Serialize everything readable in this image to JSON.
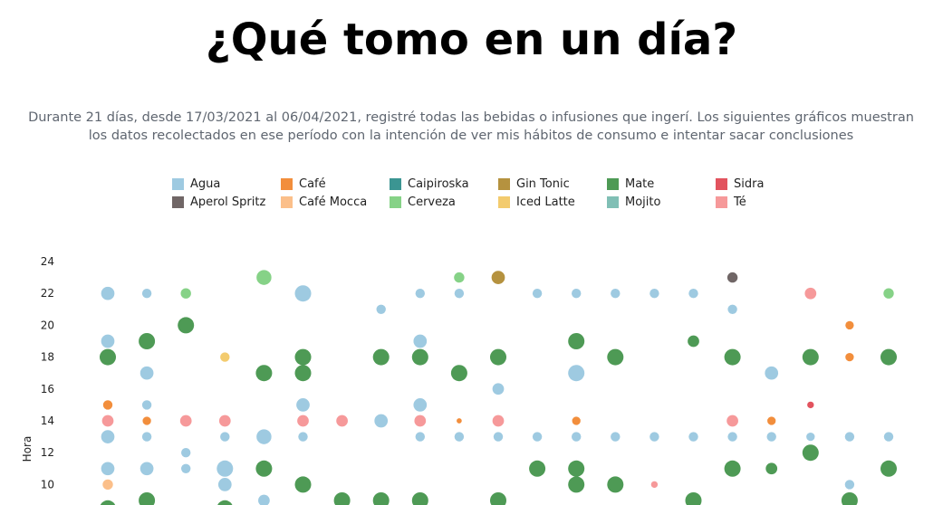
{
  "header": {
    "title": "¿Qué tomo en un día?",
    "subtitle": "Durante 21 días, desde 17/03/2021 al 06/04/2021, registré todas las bebidas o infusiones que ingerí. Los siguientes gráficos muestran los datos recolectados en ese período con la intención de ver mis hábitos de consumo e intentar sacar conclusiones"
  },
  "legend": [
    {
      "name": "Agua",
      "color": "#9ecae1"
    },
    {
      "name": "Café",
      "color": "#f28e3c"
    },
    {
      "name": "Caipiroska",
      "color": "#3b9592"
    },
    {
      "name": "Gin Tonic",
      "color": "#b5923f"
    },
    {
      "name": "Mate",
      "color": "#4e9a55"
    },
    {
      "name": "Sidra",
      "color": "#e2535e"
    },
    {
      "name": "Aperol Spritz",
      "color": "#706666"
    },
    {
      "name": "Café Mocca",
      "color": "#fbbf8a"
    },
    {
      "name": "Cerveza",
      "color": "#86d287"
    },
    {
      "name": "Iced Latte",
      "color": "#f3cb6e"
    },
    {
      "name": "Mojito",
      "color": "#80bfb5"
    },
    {
      "name": "Té",
      "color": "#f6999a"
    }
  ],
  "chart_data": {
    "type": "scatter",
    "title": "",
    "xlabel": "",
    "ylabel": "Hora",
    "ylim": [
      8.5,
      25
    ],
    "yticks": [
      "24",
      "22",
      "20",
      "18",
      "16",
      "14",
      "12",
      "10"
    ],
    "days": 21,
    "points": [
      {
        "day": 1,
        "hora": 22,
        "bebida": "Agua",
        "size": 2
      },
      {
        "day": 1,
        "hora": 19,
        "bebida": "Agua",
        "size": 2
      },
      {
        "day": 1,
        "hora": 18,
        "bebida": "Mate",
        "size": 3
      },
      {
        "day": 1,
        "hora": 15,
        "bebida": "Café",
        "size": 1
      },
      {
        "day": 1,
        "hora": 14,
        "bebida": "Té",
        "size": 1.5
      },
      {
        "day": 1,
        "hora": 13,
        "bebida": "Agua",
        "size": 2
      },
      {
        "day": 1,
        "hora": 11,
        "bebida": "Agua",
        "size": 2
      },
      {
        "day": 1,
        "hora": 10,
        "bebida": "Café Mocca",
        "size": 1.2
      },
      {
        "day": 1,
        "hora": 8.5,
        "bebida": "Mate",
        "size": 3
      },
      {
        "day": 2,
        "hora": 22,
        "bebida": "Agua",
        "size": 1
      },
      {
        "day": 2,
        "hora": 19,
        "bebida": "Mate",
        "size": 3
      },
      {
        "day": 2,
        "hora": 17,
        "bebida": "Agua",
        "size": 2
      },
      {
        "day": 2,
        "hora": 15,
        "bebida": "Agua",
        "size": 1
      },
      {
        "day": 2,
        "hora": 14,
        "bebida": "Café",
        "size": 0.8
      },
      {
        "day": 2,
        "hora": 13,
        "bebida": "Agua",
        "size": 1
      },
      {
        "day": 2,
        "hora": 11,
        "bebida": "Agua",
        "size": 2
      },
      {
        "day": 2,
        "hora": 9,
        "bebida": "Mate",
        "size": 3
      },
      {
        "day": 3,
        "hora": 22,
        "bebida": "Cerveza",
        "size": 1.2
      },
      {
        "day": 3,
        "hora": 20,
        "bebida": "Mate",
        "size": 3
      },
      {
        "day": 3,
        "hora": 14,
        "bebida": "Té",
        "size": 1.5
      },
      {
        "day": 3,
        "hora": 12,
        "bebida": "Agua",
        "size": 1
      },
      {
        "day": 3,
        "hora": 11,
        "bebida": "Agua",
        "size": 1
      },
      {
        "day": 4,
        "hora": 18,
        "bebida": "Iced Latte",
        "size": 1
      },
      {
        "day": 4,
        "hora": 14,
        "bebida": "Té",
        "size": 1.5
      },
      {
        "day": 4,
        "hora": 13,
        "bebida": "Agua",
        "size": 1
      },
      {
        "day": 4,
        "hora": 11,
        "bebida": "Agua",
        "size": 3
      },
      {
        "day": 4,
        "hora": 10,
        "bebida": "Agua",
        "size": 2
      },
      {
        "day": 4,
        "hora": 8.5,
        "bebida": "Mate",
        "size": 3
      },
      {
        "day": 5,
        "hora": 23,
        "bebida": "Cerveza",
        "size": 2.5
      },
      {
        "day": 5,
        "hora": 17,
        "bebida": "Mate",
        "size": 3
      },
      {
        "day": 5,
        "hora": 13,
        "bebida": "Agua",
        "size": 2.5
      },
      {
        "day": 5,
        "hora": 11,
        "bebida": "Mate",
        "size": 3
      },
      {
        "day": 5,
        "hora": 9,
        "bebida": "Agua",
        "size": 1.5
      },
      {
        "day": 6,
        "hora": 22,
        "bebida": "Agua",
        "size": 3
      },
      {
        "day": 6,
        "hora": 18,
        "bebida": "Mate",
        "size": 3
      },
      {
        "day": 6,
        "hora": 17,
        "bebida": "Mate",
        "size": 3
      },
      {
        "day": 6,
        "hora": 15,
        "bebida": "Agua",
        "size": 2
      },
      {
        "day": 6,
        "hora": 14,
        "bebida": "Té",
        "size": 1.5
      },
      {
        "day": 6,
        "hora": 13,
        "bebida": "Agua",
        "size": 1
      },
      {
        "day": 6,
        "hora": 10,
        "bebida": "Mate",
        "size": 3
      },
      {
        "day": 7,
        "hora": 14,
        "bebida": "Té",
        "size": 1.5
      },
      {
        "day": 7,
        "hora": 9,
        "bebida": "Mate",
        "size": 3
      },
      {
        "day": 8,
        "hora": 21,
        "bebida": "Agua",
        "size": 1
      },
      {
        "day": 8,
        "hora": 18,
        "bebida": "Mate",
        "size": 3
      },
      {
        "day": 8,
        "hora": 14,
        "bebida": "Agua",
        "size": 2
      },
      {
        "day": 8,
        "hora": 9,
        "bebida": "Mate",
        "size": 3
      },
      {
        "day": 9,
        "hora": 22,
        "bebida": "Agua",
        "size": 1
      },
      {
        "day": 9,
        "hora": 19,
        "bebida": "Agua",
        "size": 2
      },
      {
        "day": 9,
        "hora": 18,
        "bebida": "Mate",
        "size": 3
      },
      {
        "day": 9,
        "hora": 15,
        "bebida": "Agua",
        "size": 2
      },
      {
        "day": 9,
        "hora": 14,
        "bebida": "Té",
        "size": 1.5
      },
      {
        "day": 9,
        "hora": 13,
        "bebida": "Agua",
        "size": 1
      },
      {
        "day": 9,
        "hora": 9,
        "bebida": "Mate",
        "size": 3
      },
      {
        "day": 10,
        "hora": 23,
        "bebida": "Cerveza",
        "size": 1.2
      },
      {
        "day": 10,
        "hora": 22,
        "bebida": "Agua",
        "size": 1
      },
      {
        "day": 10,
        "hora": 17,
        "bebida": "Mate",
        "size": 3
      },
      {
        "day": 10,
        "hora": 14,
        "bebida": "Café",
        "size": 0.3
      },
      {
        "day": 10,
        "hora": 13,
        "bebida": "Agua",
        "size": 1
      },
      {
        "day": 11,
        "hora": 23,
        "bebida": "Gin Tonic",
        "size": 2
      },
      {
        "day": 11,
        "hora": 18,
        "bebida": "Mate",
        "size": 3
      },
      {
        "day": 11,
        "hora": 16,
        "bebida": "Agua",
        "size": 1.5
      },
      {
        "day": 11,
        "hora": 14,
        "bebida": "Té",
        "size": 1.5
      },
      {
        "day": 11,
        "hora": 13,
        "bebida": "Agua",
        "size": 1
      },
      {
        "day": 11,
        "hora": 9,
        "bebida": "Mate",
        "size": 3
      },
      {
        "day": 12,
        "hora": 22,
        "bebida": "Agua",
        "size": 1
      },
      {
        "day": 12,
        "hora": 13,
        "bebida": "Agua",
        "size": 1
      },
      {
        "day": 12,
        "hora": 11,
        "bebida": "Mate",
        "size": 3
      },
      {
        "day": 13,
        "hora": 22,
        "bebida": "Agua",
        "size": 1
      },
      {
        "day": 13,
        "hora": 19,
        "bebida": "Mate",
        "size": 3
      },
      {
        "day": 13,
        "hora": 17,
        "bebida": "Agua",
        "size": 3
      },
      {
        "day": 13,
        "hora": 14,
        "bebida": "Café",
        "size": 0.8
      },
      {
        "day": 13,
        "hora": 13,
        "bebida": "Agua",
        "size": 1
      },
      {
        "day": 13,
        "hora": 11,
        "bebida": "Mate",
        "size": 3
      },
      {
        "day": 13,
        "hora": 10,
        "bebida": "Mate",
        "size": 3
      },
      {
        "day": 14,
        "hora": 22,
        "bebida": "Agua",
        "size": 1
      },
      {
        "day": 14,
        "hora": 18,
        "bebida": "Mate",
        "size": 3
      },
      {
        "day": 14,
        "hora": 13,
        "bebida": "Agua",
        "size": 1
      },
      {
        "day": 14,
        "hora": 10,
        "bebida": "Mate",
        "size": 3
      },
      {
        "day": 15,
        "hora": 22,
        "bebida": "Agua",
        "size": 1
      },
      {
        "day": 15,
        "hora": 13,
        "bebida": "Agua",
        "size": 1
      },
      {
        "day": 15,
        "hora": 10,
        "bebida": "Té",
        "size": 0.5
      },
      {
        "day": 16,
        "hora": 22,
        "bebida": "Agua",
        "size": 1
      },
      {
        "day": 16,
        "hora": 19,
        "bebida": "Mate",
        "size": 1.5
      },
      {
        "day": 16,
        "hora": 13,
        "bebida": "Agua",
        "size": 1
      },
      {
        "day": 16,
        "hora": 9,
        "bebida": "Mate",
        "size": 3
      },
      {
        "day": 17,
        "hora": 23,
        "bebida": "Aperol Spritz",
        "size": 1.2
      },
      {
        "day": 17,
        "hora": 21,
        "bebida": "Agua",
        "size": 1
      },
      {
        "day": 17,
        "hora": 18,
        "bebida": "Mate",
        "size": 3
      },
      {
        "day": 17,
        "hora": 14,
        "bebida": "Té",
        "size": 1.5
      },
      {
        "day": 17,
        "hora": 13,
        "bebida": "Agua",
        "size": 1
      },
      {
        "day": 17,
        "hora": 11,
        "bebida": "Mate",
        "size": 3
      },
      {
        "day": 18,
        "hora": 17,
        "bebida": "Agua",
        "size": 2
      },
      {
        "day": 18,
        "hora": 14,
        "bebida": "Café",
        "size": 0.8
      },
      {
        "day": 18,
        "hora": 13,
        "bebida": "Agua",
        "size": 1
      },
      {
        "day": 18,
        "hora": 11,
        "bebida": "Mate",
        "size": 1.5
      },
      {
        "day": 19,
        "hora": 22,
        "bebida": "Té",
        "size": 1.5
      },
      {
        "day": 19,
        "hora": 18,
        "bebida": "Mate",
        "size": 3
      },
      {
        "day": 19,
        "hora": 15,
        "bebida": "Sidra",
        "size": 0.5
      },
      {
        "day": 19,
        "hora": 13,
        "bebida": "Agua",
        "size": 0.8
      },
      {
        "day": 19,
        "hora": 12,
        "bebida": "Mate",
        "size": 3
      },
      {
        "day": 20,
        "hora": 20,
        "bebida": "Café",
        "size": 0.8
      },
      {
        "day": 20,
        "hora": 18,
        "bebida": "Café",
        "size": 0.8
      },
      {
        "day": 20,
        "hora": 13,
        "bebida": "Agua",
        "size": 1
      },
      {
        "day": 20,
        "hora": 10,
        "bebida": "Agua",
        "size": 1
      },
      {
        "day": 20,
        "hora": 9,
        "bebida": "Mate",
        "size": 3
      },
      {
        "day": 21,
        "hora": 22,
        "bebida": "Cerveza",
        "size": 1.2
      },
      {
        "day": 21,
        "hora": 18,
        "bebida": "Mate",
        "size": 3
      },
      {
        "day": 21,
        "hora": 13,
        "bebida": "Agua",
        "size": 1
      },
      {
        "day": 21,
        "hora": 11,
        "bebida": "Mate",
        "size": 3
      }
    ]
  }
}
